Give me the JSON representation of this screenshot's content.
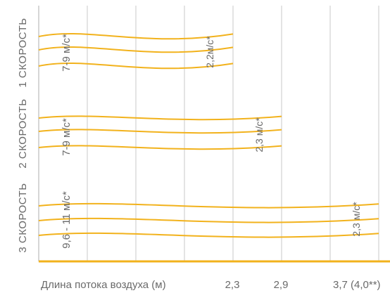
{
  "chart_data": {
    "type": "line",
    "xlabel": "Длина потока воздуха (м)",
    "x_ticks": [
      "2,3",
      "2,9",
      "3,7 (4,0**)"
    ],
    "colors": {
      "curve": "#f2b21c",
      "axis": "#f2b21c",
      "grid": "#c8c8c8",
      "text": "#6a6a6a"
    },
    "rows": [
      {
        "name": "1 СКОРОСТЬ",
        "start_speed": "7-9 м/с*",
        "end_speed": "2,2м/с*",
        "reach": "2,3",
        "curves": 3
      },
      {
        "name": "2 СКОРОСТЬ",
        "start_speed": "7-9 м/с*",
        "end_speed": "2,3 м/с*",
        "reach": "2,9",
        "curves": 3
      },
      {
        "name": "3 СКОРОСТЬ",
        "start_speed": "9,6 - 11 м/с*",
        "end_speed": "2,3 м/с*",
        "reach": "3,7 (4,0**)",
        "curves": 3
      }
    ]
  }
}
